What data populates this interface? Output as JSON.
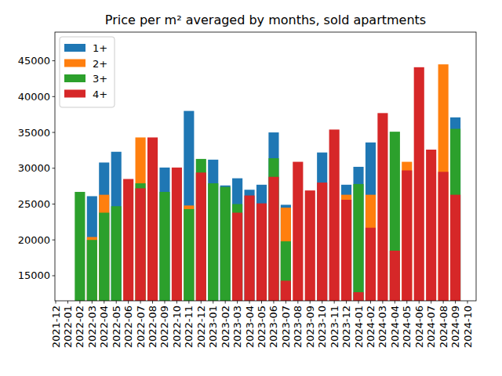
{
  "chart_data": {
    "type": "bar",
    "title": "Price per m² averaged by months, sold apartments",
    "categories": [
      "2021-12",
      "2022-01",
      "2022-02",
      "2022-03",
      "2022-04",
      "2022-05",
      "2022-06",
      "2022-07",
      "2022-08",
      "2022-09",
      "2022-10",
      "2022-11",
      "2022-12",
      "2023-01",
      "2023-02",
      "2023-03",
      "2023-04",
      "2023-05",
      "2023-06",
      "2023-07",
      "2023-08",
      "2023-09",
      "2023-10",
      "2023-11",
      "2023-12",
      "2024-01",
      "2024-02",
      "2024-03",
      "2024-04",
      "2024-05",
      "2024-06",
      "2024-07",
      "2024-08",
      "2024-09",
      "2024-10"
    ],
    "series": [
      {
        "name": "1+",
        "color": "#1f77b4",
        "values": [
          null,
          null,
          null,
          26100,
          30800,
          32300,
          null,
          null,
          null,
          30100,
          null,
          38000,
          null,
          31200,
          27600,
          28600,
          27000,
          27700,
          35000,
          24900,
          null,
          null,
          32200,
          null,
          27700,
          30200,
          33600,
          null,
          null,
          null,
          null,
          null,
          null,
          37100,
          null
        ]
      },
      {
        "name": "2+",
        "color": "#ff7f0e",
        "values": [
          null,
          null,
          null,
          20400,
          26300,
          null,
          null,
          34300,
          null,
          null,
          null,
          24800,
          null,
          null,
          null,
          null,
          null,
          null,
          null,
          24500,
          null,
          null,
          null,
          null,
          26300,
          null,
          26300,
          null,
          null,
          30900,
          null,
          null,
          44500,
          null,
          null
        ]
      },
      {
        "name": "3+",
        "color": "#2ca02c",
        "values": [
          null,
          null,
          26700,
          20000,
          23800,
          24700,
          null,
          27900,
          null,
          26700,
          null,
          24300,
          31300,
          27900,
          27400,
          25000,
          null,
          null,
          31400,
          19800,
          null,
          null,
          null,
          null,
          null,
          27800,
          null,
          null,
          35100,
          null,
          null,
          null,
          null,
          35500,
          null
        ]
      },
      {
        "name": "4+",
        "color": "#d62728",
        "values": [
          null,
          null,
          null,
          null,
          null,
          null,
          28500,
          27200,
          34300,
          null,
          30100,
          null,
          29400,
          null,
          null,
          23800,
          26200,
          25100,
          28800,
          14300,
          30900,
          26900,
          28000,
          35400,
          25600,
          12700,
          21700,
          37700,
          18500,
          29700,
          44100,
          32600,
          29500,
          26300,
          null
        ]
      }
    ],
    "ylim": [
      11500,
      49000
    ],
    "yticks": [
      15000,
      20000,
      25000,
      30000,
      35000,
      40000,
      45000
    ],
    "grid": false,
    "legend": "upper left"
  }
}
